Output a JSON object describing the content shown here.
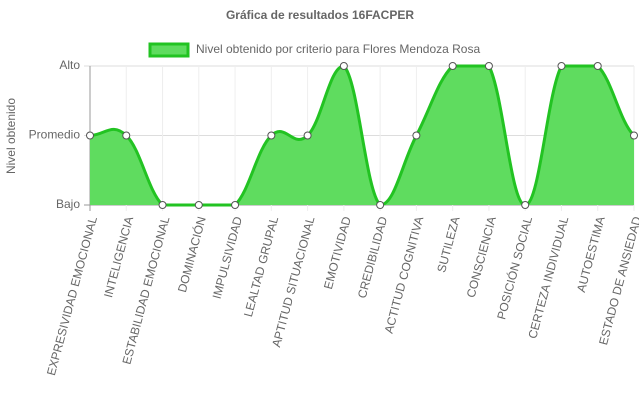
{
  "chart_data": {
    "type": "line",
    "title": "Gráfica de resultados 16FACPER",
    "y_label": "Nivel obtenido",
    "categories": [
      "EXPRESIVIDAD EMOCIONAL",
      "INTELIGENCIA",
      "ESTABILIDAD EMOCIONAL",
      "DOMINACIÓN",
      "IMPULSIVIDAD",
      "LEALTAD GRUPAL",
      "APTITUD SITUACIONAL",
      "EMOTIVIDAD",
      "CREDIBILIDAD",
      "ACTITUD COGNITIVA",
      "SUTILEZA",
      "CONSCIENCIA",
      "POSICIÓN SOCIAL",
      "CERTEZA INDIVIDUAL",
      "AUTOESTIMA",
      "ESTADO DE ANSIEDAD"
    ],
    "series": [
      {
        "name": "Nivel obtenido por criterio para Flores Mendoza Rosa",
        "color": "#22c322",
        "fill": "#5fdc5f",
        "values": [
          1,
          1,
          0,
          0,
          0,
          1,
          1,
          2,
          0,
          1,
          2,
          2,
          0,
          2,
          2,
          1
        ]
      }
    ],
    "ylim": [
      0,
      2
    ],
    "yticks": [
      {
        "value": 0,
        "label": "Bajo"
      },
      {
        "value": 1,
        "label": "Promedio"
      },
      {
        "value": 2,
        "label": "Alto"
      }
    ],
    "grid": true,
    "legend": "top"
  }
}
